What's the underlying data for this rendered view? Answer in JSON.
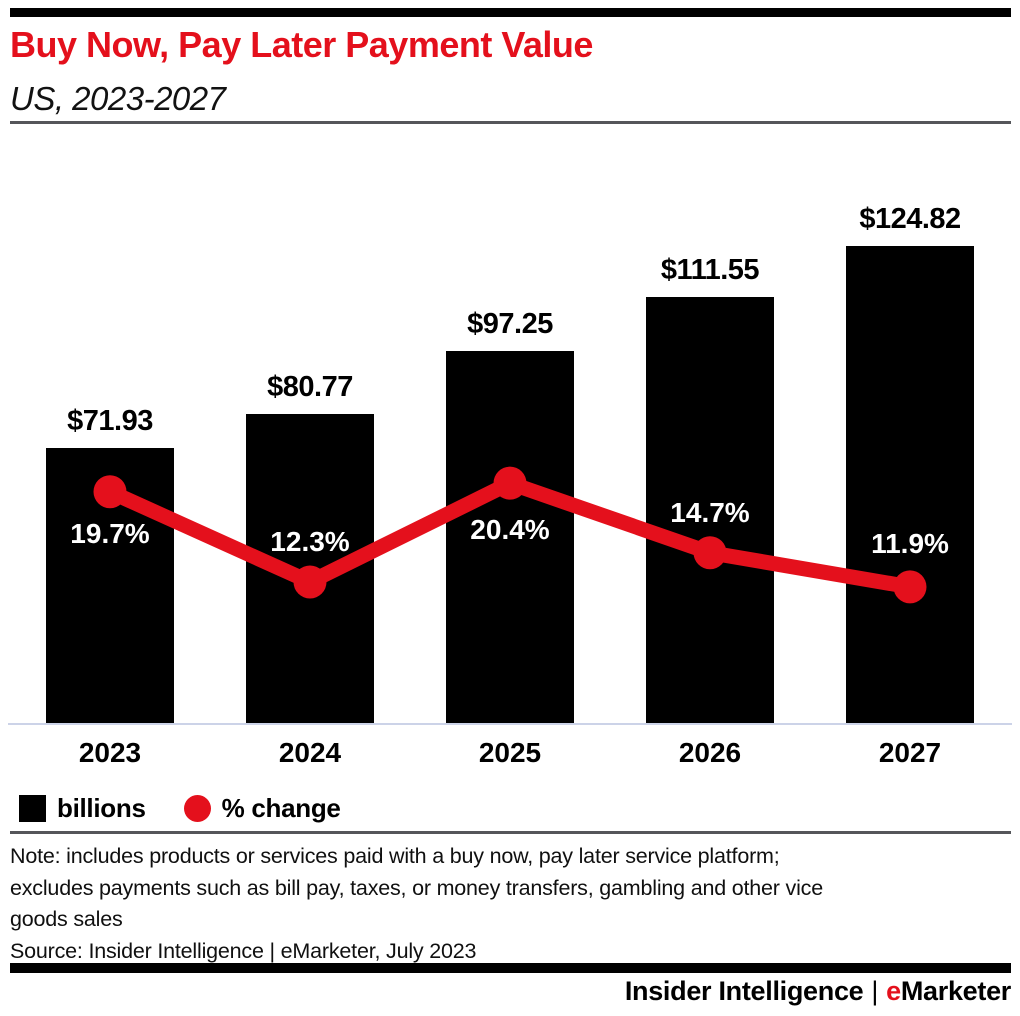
{
  "header": {
    "title": "Buy Now, Pay Later Payment Value",
    "subtitle": "US, 2023-2027"
  },
  "colors": {
    "accent_red": "#e4101c",
    "bar_black": "#000000",
    "axis_line": "#ccd3e8",
    "rule_gray": "#55565a"
  },
  "chart_data": {
    "type": "bar",
    "subtype": "bar-with-line-overlay",
    "categories": [
      "2023",
      "2024",
      "2025",
      "2026",
      "2027"
    ],
    "series": [
      {
        "name": "billions",
        "type": "bar",
        "unit": "US$ billions",
        "value_prefix": "$",
        "values": [
          71.93,
          80.77,
          97.25,
          111.55,
          124.82
        ],
        "labels": [
          "$71.93",
          "$80.77",
          "$97.25",
          "$111.55",
          "$124.82"
        ],
        "color": "#000000"
      },
      {
        "name": "% change",
        "type": "line",
        "unit": "%",
        "value_suffix": "%",
        "values": [
          19.7,
          12.3,
          20.4,
          14.7,
          11.9
        ],
        "labels": [
          "19.7%",
          "12.3%",
          "20.4%",
          "14.7%",
          "11.9%"
        ],
        "color": "#e4101c"
      }
    ],
    "grid": false,
    "y_axis_visible": false,
    "legend_position": "bottom-left"
  },
  "legend": {
    "items": [
      {
        "label": "billions",
        "swatch": "square",
        "color": "#000000"
      },
      {
        "label": "% change",
        "swatch": "circle",
        "color": "#e4101c"
      }
    ]
  },
  "footer": {
    "note_lines": [
      "Note: includes products or services paid with a buy now, pay later service platform;",
      "excludes payments such as bill pay, taxes, or money transfers, gambling and other vice",
      "goods sales"
    ],
    "source": "Source: Insider Intelligence | eMarketer, July 2023",
    "brand": {
      "left": "Insider Intelligence",
      "separator": "|",
      "right_accent": "e",
      "right_rest": "Marketer"
    }
  }
}
